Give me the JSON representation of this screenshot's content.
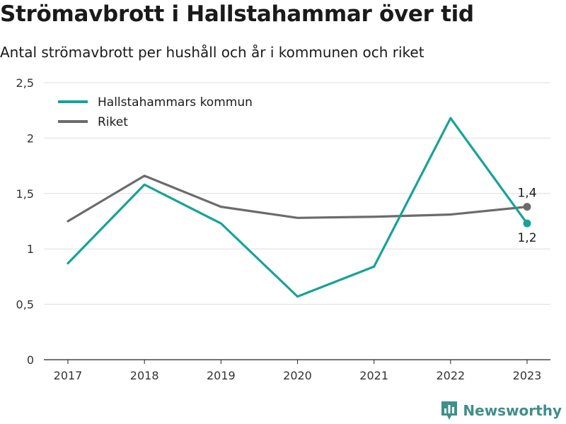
{
  "title": "Strömavbrott i Hallstahammar över tid",
  "subtitle": "Antal strömavbrott per hushåll och år i kommunen och riket",
  "brand": {
    "name": "Newsworthy",
    "icon": "bar-chart-logo-icon",
    "color": "#3f8f8a"
  },
  "chart_data": {
    "type": "line",
    "x": [
      "2017",
      "2018",
      "2019",
      "2020",
      "2021",
      "2022",
      "2023"
    ],
    "ylim": [
      0,
      2.5
    ],
    "yticks": [
      {
        "value": 0,
        "label": "0"
      },
      {
        "value": 0.5,
        "label": "0,5"
      },
      {
        "value": 1,
        "label": "1"
      },
      {
        "value": 1.5,
        "label": "1,5"
      },
      {
        "value": 2,
        "label": "2"
      },
      {
        "value": 2.5,
        "label": "2,5"
      }
    ],
    "grid": true,
    "legend_position": "top-left",
    "series": [
      {
        "name": "Hallstahammars kommun",
        "color": "#16a398",
        "values": [
          0.87,
          1.58,
          1.23,
          0.57,
          0.84,
          2.18,
          1.23
        ],
        "end_label": "1,2",
        "end_label_position": "below"
      },
      {
        "name": "Riket",
        "color": "#6b6b6b",
        "values": [
          1.25,
          1.66,
          1.38,
          1.28,
          1.29,
          1.31,
          1.38
        ],
        "end_label": "1,4",
        "end_label_position": "above"
      }
    ]
  }
}
